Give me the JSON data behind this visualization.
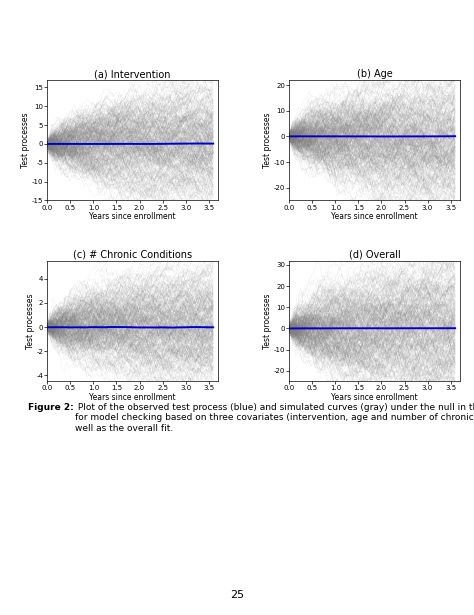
{
  "subplots": [
    {
      "title": "(a) Intervention",
      "ylim": [
        -15,
        17
      ],
      "yticks": [
        -15,
        -10,
        -5,
        0,
        5,
        10,
        15
      ],
      "spread": 5.0,
      "blue_noise": 0.008
    },
    {
      "title": "(b) Age",
      "ylim": [
        -25,
        22
      ],
      "yticks": [
        -20,
        -10,
        0,
        10,
        20
      ],
      "spread": 8.0,
      "blue_noise": 0.006
    },
    {
      "title": "(c) # Chronic Conditions",
      "ylim": [
        -4.5,
        5.5
      ],
      "yticks": [
        -4,
        -2,
        0,
        2,
        4
      ],
      "spread": 1.6,
      "blue_noise": 0.015
    },
    {
      "title": "(d) Overall",
      "ylim": [
        -25,
        32
      ],
      "yticks": [
        -20,
        -10,
        0,
        10,
        20,
        30
      ],
      "spread": 10.0,
      "blue_noise": 0.006
    }
  ],
  "xlabel": "Years since enrollment",
  "ylabel": "Test processes",
  "xlim": [
    0.0,
    3.7
  ],
  "xticks": [
    0.0,
    0.5,
    1.0,
    1.5,
    2.0,
    2.5,
    3.0,
    3.5
  ],
  "gray_color": "#808080",
  "blue_color": "#0000CC",
  "n_gray_lines": 300,
  "n_time_points": 150,
  "x_max": 3.6,
  "gray_alpha": 0.18,
  "gray_lw": 0.25,
  "blue_lw": 1.4,
  "caption_bold": "Figure 2:",
  "caption_rest": " Plot of the observed test process (blue) and simulated curves (gray) under the null in the STRIDE study\nfor model checking based on three covariates (intervention, age and number of chronic coexisting conditions), as\nwell as the overall fit.",
  "page_number": "25",
  "background_color": "#ffffff",
  "title_fontsize": 7.0,
  "label_fontsize": 5.5,
  "tick_fontsize": 5.0,
  "caption_fontsize": 6.5
}
